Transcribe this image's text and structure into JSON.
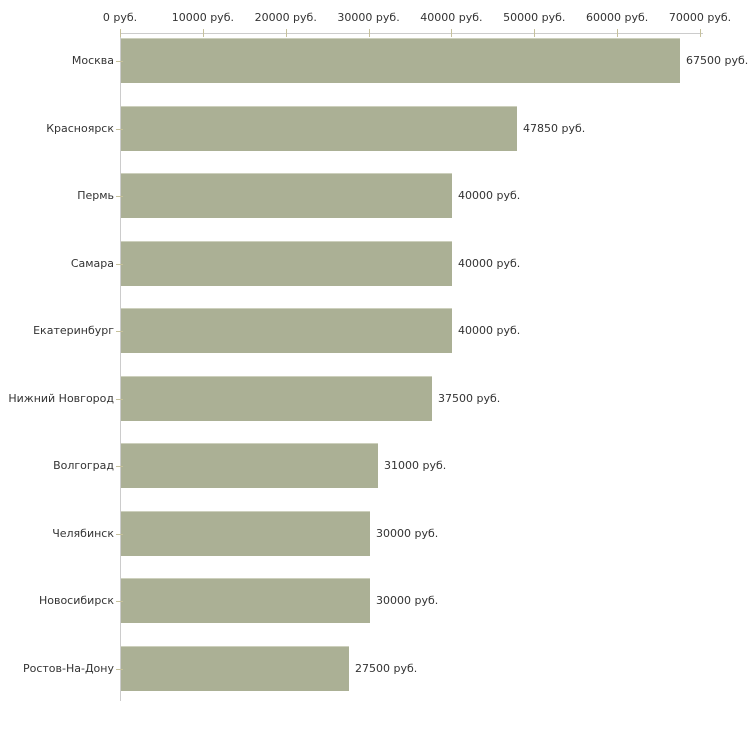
{
  "chart_data": {
    "type": "bar",
    "orientation": "horizontal",
    "title": "",
    "xlabel": "",
    "ylabel": "",
    "unit": "руб.",
    "xlim": [
      0,
      70000
    ],
    "grid": false,
    "legend": false,
    "categories": [
      "Москва",
      "Красноярск",
      "Пермь",
      "Самара",
      "Екатеринбург",
      "Нижний Новгород",
      "Волгоград",
      "Челябинск",
      "Новосибирск",
      "Ростов-На-Дону"
    ],
    "values": [
      67500,
      47850,
      40000,
      40000,
      40000,
      37500,
      31000,
      30000,
      30000,
      27500
    ],
    "value_labels": [
      "67500 руб.",
      "47850 руб.",
      "40000 руб.",
      "40000 руб.",
      "40000 руб.",
      "37500 руб.",
      "31000 руб.",
      "30000 руб.",
      "30000 руб.",
      "27500 руб."
    ],
    "x_ticks": [
      0,
      10000,
      20000,
      30000,
      40000,
      50000,
      60000,
      70000
    ],
    "x_tick_labels": [
      "0 руб.",
      "10000 руб.",
      "20000 руб.",
      "30000 руб.",
      "40000 руб.",
      "50000 руб.",
      "60000 руб.",
      "70000 руб."
    ],
    "colors": {
      "bar": "#abb095",
      "bar_top_edge": "#cdd0bd",
      "axis_line": "#cccccc",
      "tick": "#c6c19c",
      "text": "#333333",
      "background": "#ffffff"
    }
  }
}
